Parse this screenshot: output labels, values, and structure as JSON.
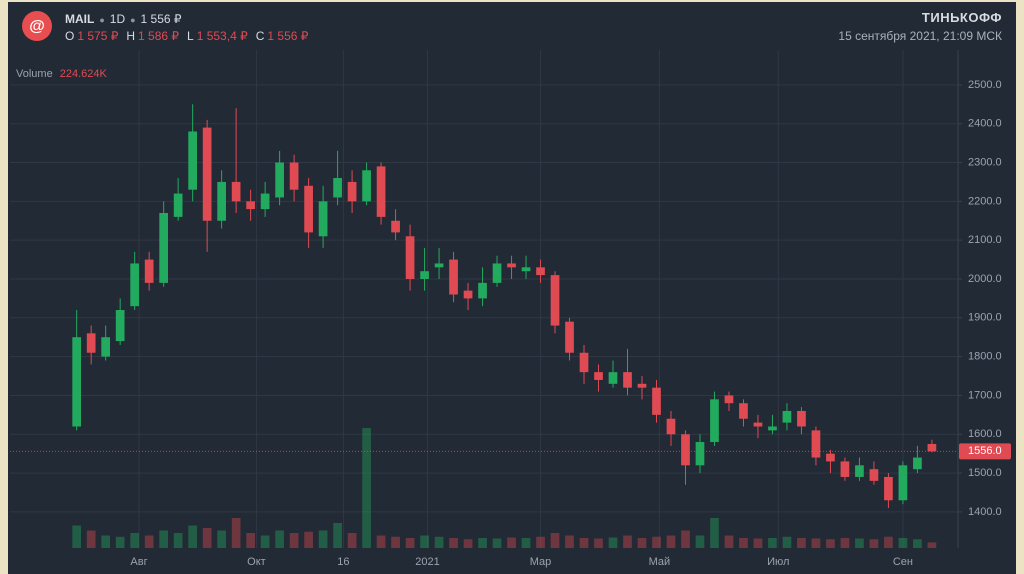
{
  "chart_data": {
    "type": "candlestick",
    "symbol": "MAIL",
    "interval": "1D",
    "price": "1 556 ₽",
    "ohlc": [
      {
        "key": "O",
        "value": "1 575 ₽"
      },
      {
        "key": "H",
        "value": "1 586 ₽"
      },
      {
        "key": "L",
        "value": "1 553,4 ₽"
      },
      {
        "key": "C",
        "value": "1 556 ₽"
      }
    ],
    "brand": "ТИНЬКОФФ",
    "timestamp": "15 сентября 2021, 21:09 МСК",
    "volume_label": "Volume",
    "volume_value": "224.624K",
    "up_color": "#22ab5e",
    "down_color": "#e04b53",
    "open": [
      1620,
      1860,
      1800,
      1840,
      1930,
      2050,
      1990,
      2160,
      2230,
      2390,
      2150,
      2250,
      2200,
      2180,
      2210,
      2300,
      2240,
      2110,
      2210,
      2250,
      2200,
      2290,
      2150,
      2110,
      2000,
      2030,
      2050,
      1970,
      1950,
      1990,
      2040,
      2020,
      2030,
      2010,
      1890,
      1810,
      1760,
      1730,
      1760,
      1730,
      1720,
      1640,
      1600,
      1520,
      1580,
      1700,
      1680,
      1630,
      1610,
      1630,
      1660,
      1610,
      1550,
      1530,
      1490,
      1510,
      1490,
      1430,
      1510,
      1575
    ],
    "high": [
      1920,
      1880,
      1880,
      1950,
      2070,
      2070,
      2200,
      2260,
      2450,
      2410,
      2280,
      2440,
      2230,
      2250,
      2330,
      2320,
      2260,
      2240,
      2330,
      2280,
      2300,
      2300,
      2180,
      2140,
      2080,
      2080,
      2070,
      1990,
      2030,
      2060,
      2060,
      2060,
      2050,
      2020,
      1900,
      1830,
      1780,
      1790,
      1820,
      1750,
      1740,
      1660,
      1610,
      1600,
      1710,
      1710,
      1690,
      1650,
      1650,
      1680,
      1670,
      1620,
      1560,
      1540,
      1540,
      1530,
      1500,
      1530,
      1570,
      1586
    ],
    "low": [
      1610,
      1780,
      1790,
      1830,
      1920,
      1970,
      1980,
      2150,
      2200,
      2070,
      2130,
      2170,
      2150,
      2160,
      2190,
      2200,
      2080,
      2080,
      2190,
      2170,
      2190,
      2140,
      2100,
      1970,
      1970,
      2000,
      1940,
      1920,
      1930,
      1980,
      2000,
      2000,
      1990,
      1860,
      1790,
      1730,
      1710,
      1720,
      1700,
      1690,
      1630,
      1570,
      1470,
      1500,
      1570,
      1660,
      1620,
      1590,
      1600,
      1610,
      1600,
      1520,
      1500,
      1480,
      1480,
      1470,
      1410,
      1420,
      1500,
      1553.4
    ],
    "close": [
      1850,
      1810,
      1850,
      1920,
      2040,
      1990,
      2170,
      2220,
      2380,
      2150,
      2250,
      2200,
      2180,
      2220,
      2300,
      2230,
      2120,
      2200,
      2260,
      2200,
      2280,
      2160,
      2120,
      2000,
      2020,
      2040,
      1960,
      1950,
      1990,
      2040,
      2030,
      2030,
      2010,
      1880,
      1810,
      1760,
      1740,
      1760,
      1720,
      1720,
      1650,
      1600,
      1520,
      1580,
      1690,
      1680,
      1640,
      1620,
      1620,
      1660,
      1620,
      1540,
      1530,
      1490,
      1520,
      1480,
      1430,
      1520,
      1540,
      1556
    ],
    "volume": [
      900,
      700,
      500,
      450,
      600,
      500,
      700,
      600,
      900,
      800,
      700,
      1200,
      600,
      500,
      700,
      600,
      650,
      700,
      1000,
      600,
      4800,
      500,
      450,
      400,
      500,
      450,
      400,
      350,
      400,
      380,
      420,
      400,
      450,
      600,
      500,
      400,
      380,
      420,
      500,
      400,
      450,
      500,
      700,
      500,
      1200,
      500,
      400,
      380,
      400,
      450,
      400,
      380,
      350,
      400,
      380,
      350,
      450,
      400,
      350,
      224.624
    ],
    "volume_ylim": [
      0,
      6000
    ],
    "xlim": [
      -4.6,
      60.8
    ],
    "xticks": [
      {
        "value": 4.3,
        "label": "Авг"
      },
      {
        "value": 12.4,
        "label": "Окт"
      },
      {
        "value": 18.4,
        "label": "16"
      },
      {
        "value": 24.2,
        "label": "2021"
      },
      {
        "value": 32,
        "label": "Мар"
      },
      {
        "value": 40.2,
        "label": "Май"
      },
      {
        "value": 48.4,
        "label": "Июл"
      },
      {
        "value": 57,
        "label": "Сен"
      }
    ],
    "ylim": [
      1307,
      2577
    ],
    "yticks": [
      {
        "value": 1400,
        "label": "1400.0"
      },
      {
        "value": 1500,
        "label": "1500.0"
      },
      {
        "value": 1600,
        "label": "1600.0"
      },
      {
        "value": 1700,
        "label": "1700.0"
      },
      {
        "value": 1800,
        "label": "1800.0"
      },
      {
        "value": 1900,
        "label": "1900.0"
      },
      {
        "value": 2000,
        "label": "2000.0"
      },
      {
        "value": 2100,
        "label": "2100.0"
      },
      {
        "value": 2200,
        "label": "2200.0"
      },
      {
        "value": 2300,
        "label": "2300.0"
      },
      {
        "value": 2400,
        "label": "2400.0"
      },
      {
        "value": 2500,
        "label": "2500.0"
      }
    ],
    "last_price": {
      "value": 1556,
      "label": "1556.0"
    },
    "grid": true
  }
}
